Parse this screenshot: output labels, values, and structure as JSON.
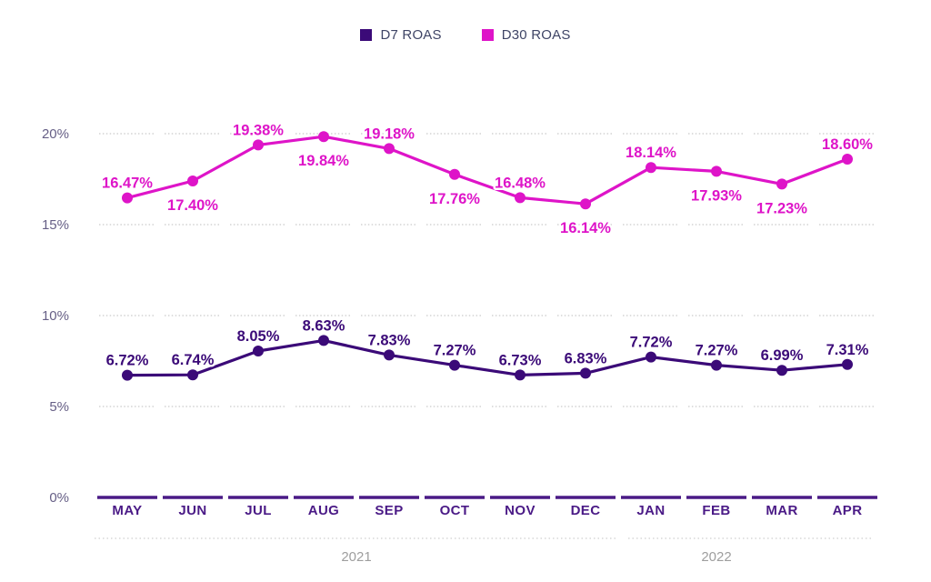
{
  "legend": {
    "items": [
      {
        "label": "D7 ROAS",
        "color": "#3b0a78"
      },
      {
        "label": "D30 ROAS",
        "color": "#de14c8"
      }
    ]
  },
  "chart_data": {
    "type": "line",
    "title": "",
    "categories": [
      "MAY",
      "JUN",
      "JUL",
      "AUG",
      "SEP",
      "OCT",
      "NOV",
      "DEC",
      "JAN",
      "FEB",
      "MAR",
      "APR"
    ],
    "x_axis_year_groups": [
      {
        "label": "2021",
        "start_index": 0,
        "end_index": 7
      },
      {
        "label": "2022",
        "start_index": 8,
        "end_index": 11
      }
    ],
    "y_axis": {
      "unit": "%",
      "min": 0,
      "max": 20,
      "tick_step": 5,
      "tick_labels": [
        "0%",
        "5%",
        "10%",
        "15%",
        "20%"
      ]
    },
    "grid": "dotted horizontal gridlines, segmented per month",
    "legend_position": "top-center",
    "series": [
      {
        "name": "D7 ROAS",
        "color": "#3b0a78",
        "values": [
          6.72,
          6.74,
          8.05,
          8.63,
          7.83,
          7.27,
          6.73,
          6.83,
          7.72,
          7.27,
          6.99,
          7.31
        ],
        "data_labels": [
          "6.72%",
          "6.74%",
          "8.05%",
          "8.63%",
          "7.83%",
          "7.27%",
          "6.73%",
          "6.83%",
          "7.72%",
          "7.27%",
          "6.99%",
          "7.31%"
        ],
        "label_placement": [
          "above",
          "above",
          "above",
          "above",
          "above",
          "above",
          "above",
          "above",
          "above",
          "above",
          "above",
          "above"
        ]
      },
      {
        "name": "D30 ROAS",
        "color": "#de14c8",
        "values": [
          16.47,
          17.4,
          19.38,
          19.84,
          19.18,
          17.76,
          16.48,
          16.14,
          18.14,
          17.93,
          17.23,
          18.6
        ],
        "data_labels": [
          "16.47%",
          "17.40%",
          "19.38%",
          "19.84%",
          "19.18%",
          "17.76%",
          "16.48%",
          "16.14%",
          "18.14%",
          "17.93%",
          "17.23%",
          "18.60%"
        ],
        "label_placement": [
          "above",
          "below",
          "above",
          "below",
          "above",
          "below",
          "above",
          "below",
          "above",
          "below",
          "below",
          "above"
        ]
      }
    ],
    "axis_colors": {
      "x_labels": "#4a1a86",
      "y_labels": "#665f86",
      "year_labels": "#9e9e9e",
      "zero_axis": "#4a1a86",
      "gridline": "#c9c9c9"
    }
  }
}
